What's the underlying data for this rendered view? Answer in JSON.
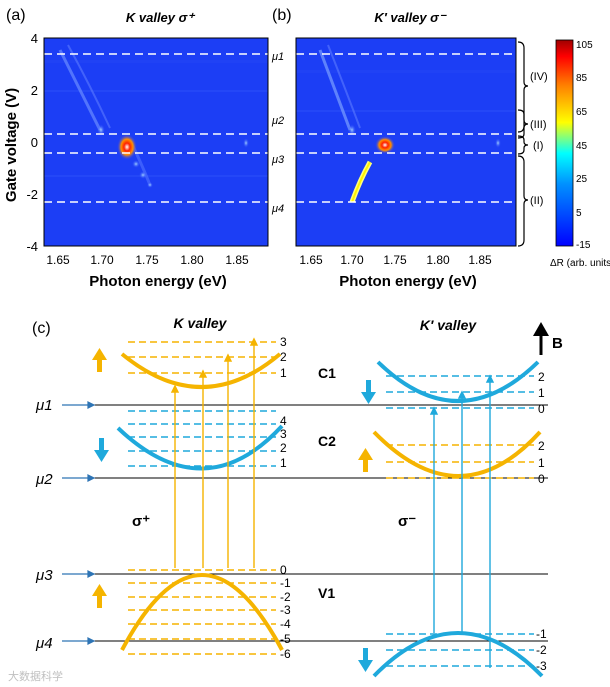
{
  "figure": {
    "panel_a": {
      "label": "(a)",
      "title": "K valley σ⁺",
      "x_label": "Photon energy (eV)",
      "y_label": "Gate voltage (V)",
      "x_ticks": [
        "1.65",
        "1.70",
        "1.75",
        "1.80",
        "1.85"
      ],
      "y_ticks": [
        "4",
        "2",
        "0",
        "-2",
        "-4"
      ]
    },
    "panel_b": {
      "label": "(b)",
      "title": "K′ valley σ⁻",
      "x_label": "Photon energy (eV)",
      "x_ticks": [
        "1.65",
        "1.70",
        "1.75",
        "1.80",
        "1.85"
      ],
      "mu_labels": [
        "μ1",
        "μ2",
        "μ3",
        "μ4"
      ],
      "regions": [
        "(IV)",
        "(III)",
        "(I)",
        "(II)"
      ]
    },
    "colorbar": {
      "ticks": [
        "105",
        "85",
        "65",
        "45",
        "25",
        "5",
        "-15"
      ],
      "label": "ΔR (arb. units)",
      "colors": [
        "#0000ff",
        "#00ffff",
        "#ffff00",
        "#ff8000",
        "#ff0000",
        "#a00000"
      ]
    },
    "panel_c": {
      "label": "(c)",
      "k_title": "K valley",
      "kp_title": "K′ valley",
      "b_label": "B",
      "band_c1": "C1",
      "band_c2": "C2",
      "band_v1": "V1",
      "sigma_plus": "σ⁺",
      "sigma_minus": "σ⁻",
      "mu_labels": [
        "μ1",
        "μ2",
        "μ3",
        "μ4"
      ],
      "k_c1_levels": [
        "3",
        "2",
        "1"
      ],
      "k_c2_levels": [
        "4",
        "3",
        "2",
        "1"
      ],
      "k_v1_levels": [
        "0",
        "-1",
        "-2",
        "-3",
        "-4",
        "-5",
        "-6"
      ],
      "kp_c1_levels": [
        "2",
        "1",
        "0"
      ],
      "kp_c2_levels": [
        "2",
        "1",
        "0"
      ],
      "kp_v1_levels": [
        "-1",
        "-2",
        "-3"
      ],
      "colors": {
        "gold": "#f5b400",
        "blue": "#1fa9dc",
        "arrow": "#2e74b5"
      }
    },
    "watermark": "大数据科学"
  }
}
